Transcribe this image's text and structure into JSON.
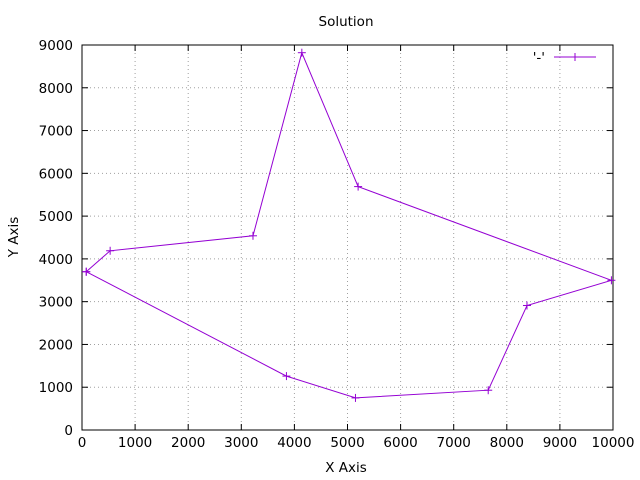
{
  "chart_data": {
    "type": "line",
    "title": "Solution",
    "xlabel": "X Axis",
    "ylabel": "Y Axis",
    "xlim": [
      0,
      10000
    ],
    "ylim": [
      0,
      9000
    ],
    "xticks": [
      0,
      1000,
      2000,
      3000,
      4000,
      5000,
      6000,
      7000,
      8000,
      9000,
      10000
    ],
    "yticks": [
      0,
      1000,
      2000,
      3000,
      4000,
      5000,
      6000,
      7000,
      8000,
      9000
    ],
    "xtick_labels": [
      "0",
      "1000",
      "2000",
      "3000",
      "4000",
      "5000",
      "6000",
      "7000",
      "8000",
      "9000",
      "10000"
    ],
    "ytick_labels": [
      "0",
      "1000",
      "2000",
      "3000",
      "4000",
      "5000",
      "6000",
      "7000",
      "8000",
      "9000"
    ],
    "grid": true,
    "legend_position": "top-right",
    "series": [
      {
        "name": "'-'",
        "color": "#9400d3",
        "marker": "plus",
        "x": [
          80,
          530,
          3220,
          4140,
          5200,
          9970,
          8380,
          7650,
          5150,
          3850,
          80
        ],
        "y": [
          3700,
          4190,
          4540,
          8820,
          5690,
          3500,
          2910,
          930,
          750,
          1260,
          3700
        ]
      }
    ]
  }
}
